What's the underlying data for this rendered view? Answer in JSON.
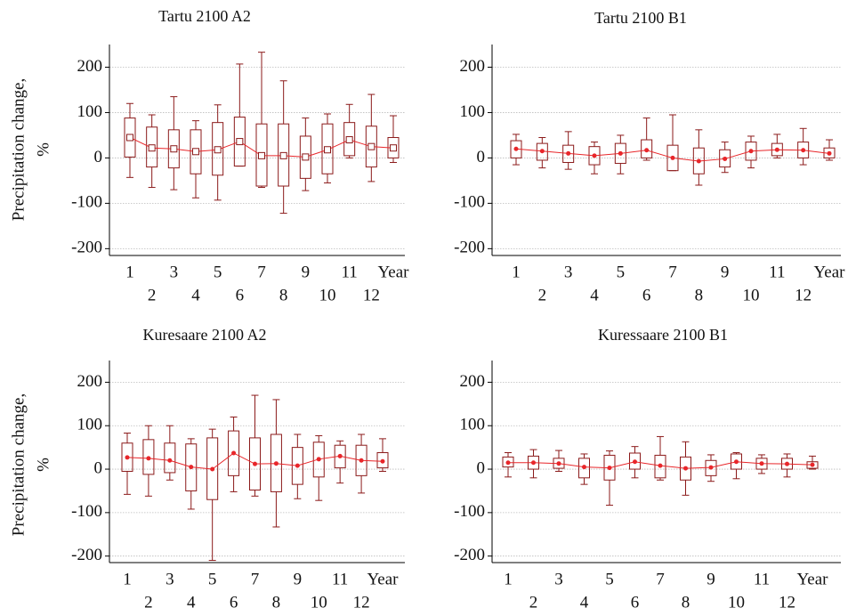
{
  "chart_data": [
    {
      "type": "box",
      "title": "Tartu 2100 A2",
      "ylabel": [
        "Precipitation change,",
        "%"
      ],
      "categories": [
        "1",
        "2",
        "3",
        "4",
        "5",
        "6",
        "7",
        "8",
        "9",
        "10",
        "11",
        "12",
        "Year"
      ],
      "box_color": "#8b1a1a",
      "center_color": "#e8262a",
      "center_marker": "hollow-square",
      "grid": true,
      "ylim": [
        -215,
        250
      ],
      "yticks": [
        -200,
        -100,
        0,
        100,
        200
      ],
      "boxes": [
        {
          "low": -43,
          "q1": 2,
          "mid": 45,
          "q3": 88,
          "high": 120
        },
        {
          "low": -65,
          "q1": -20,
          "mid": 22,
          "q3": 68,
          "high": 95
        },
        {
          "low": -70,
          "q1": -22,
          "mid": 20,
          "q3": 62,
          "high": 135
        },
        {
          "low": -88,
          "q1": -35,
          "mid": 14,
          "q3": 62,
          "high": 82
        },
        {
          "low": -93,
          "q1": -38,
          "mid": 18,
          "q3": 78,
          "high": 117
        },
        {
          "low": -18,
          "q1": -18,
          "mid": 36,
          "q3": 90,
          "high": 207
        },
        {
          "low": -65,
          "q1": -62,
          "mid": 5,
          "q3": 75,
          "high": 233
        },
        {
          "low": -122,
          "q1": -62,
          "mid": 5,
          "q3": 75,
          "high": 170
        },
        {
          "low": -72,
          "q1": -45,
          "mid": 2,
          "q3": 48,
          "high": 88
        },
        {
          "low": -55,
          "q1": -35,
          "mid": 18,
          "q3": 75,
          "high": 97
        },
        {
          "low": 0,
          "q1": 5,
          "mid": 40,
          "q3": 78,
          "high": 118
        },
        {
          "low": -52,
          "q1": -20,
          "mid": 25,
          "q3": 70,
          "high": 140
        },
        {
          "low": -10,
          "q1": 0,
          "mid": 22,
          "q3": 45,
          "high": 93
        }
      ]
    },
    {
      "type": "box",
      "title": "Tartu 2100 B1",
      "categories": [
        "1",
        "2",
        "3",
        "4",
        "5",
        "6",
        "7",
        "8",
        "9",
        "10",
        "11",
        "12",
        "Year"
      ],
      "box_color": "#8b1a1a",
      "center_color": "#e8262a",
      "center_marker": "dot",
      "grid": true,
      "ylim": [
        -215,
        250
      ],
      "yticks": [
        -200,
        -100,
        0,
        100,
        200
      ],
      "boxes": [
        {
          "low": -15,
          "q1": 0,
          "mid": 20,
          "q3": 38,
          "high": 52
        },
        {
          "low": -22,
          "q1": -5,
          "mid": 15,
          "q3": 32,
          "high": 45
        },
        {
          "low": -25,
          "q1": -10,
          "mid": 10,
          "q3": 28,
          "high": 58
        },
        {
          "low": -35,
          "q1": -15,
          "mid": 5,
          "q3": 25,
          "high": 35
        },
        {
          "low": -35,
          "q1": -12,
          "mid": 10,
          "q3": 32,
          "high": 50
        },
        {
          "low": -5,
          "q1": 0,
          "mid": 17,
          "q3": 40,
          "high": 88
        },
        {
          "low": -28,
          "q1": -28,
          "mid": 0,
          "q3": 28,
          "high": 95
        },
        {
          "low": -60,
          "q1": -35,
          "mid": -7,
          "q3": 22,
          "high": 62
        },
        {
          "low": -32,
          "q1": -20,
          "mid": -2,
          "q3": 18,
          "high": 35
        },
        {
          "low": -22,
          "q1": -5,
          "mid": 15,
          "q3": 35,
          "high": 48
        },
        {
          "low": 0,
          "q1": 5,
          "mid": 18,
          "q3": 32,
          "high": 52
        },
        {
          "low": -15,
          "q1": 0,
          "mid": 17,
          "q3": 35,
          "high": 65
        },
        {
          "low": -5,
          "q1": 0,
          "mid": 10,
          "q3": 22,
          "high": 40
        }
      ]
    },
    {
      "type": "box",
      "title": "Kuresaare 2100 A2",
      "ylabel": [
        "Precipitation change,",
        "%"
      ],
      "categories": [
        "1",
        "2",
        "3",
        "4",
        "5",
        "6",
        "7",
        "8",
        "9",
        "10",
        "11",
        "12",
        "Year"
      ],
      "box_color": "#8b1a1a",
      "center_color": "#e8262a",
      "center_marker": "dot",
      "grid": true,
      "ylim": [
        -215,
        250
      ],
      "yticks": [
        -200,
        -100,
        0,
        100,
        200
      ],
      "boxes": [
        {
          "low": -58,
          "q1": -5,
          "mid": 27,
          "q3": 60,
          "high": 83
        },
        {
          "low": -62,
          "q1": -12,
          "mid": 25,
          "q3": 68,
          "high": 100
        },
        {
          "low": -25,
          "q1": -8,
          "mid": 20,
          "q3": 60,
          "high": 100
        },
        {
          "low": -92,
          "q1": -50,
          "mid": 5,
          "q3": 58,
          "high": 70
        },
        {
          "low": -210,
          "q1": -70,
          "mid": 0,
          "q3": 72,
          "high": 92
        },
        {
          "low": -52,
          "q1": -15,
          "mid": 37,
          "q3": 88,
          "high": 120
        },
        {
          "low": -62,
          "q1": -48,
          "mid": 12,
          "q3": 72,
          "high": 170
        },
        {
          "low": -133,
          "q1": -52,
          "mid": 13,
          "q3": 80,
          "high": 160
        },
        {
          "low": -68,
          "q1": -35,
          "mid": 8,
          "q3": 50,
          "high": 80
        },
        {
          "low": -72,
          "q1": -18,
          "mid": 23,
          "q3": 62,
          "high": 77
        },
        {
          "low": -32,
          "q1": 3,
          "mid": 30,
          "q3": 55,
          "high": 65
        },
        {
          "low": -55,
          "q1": -15,
          "mid": 20,
          "q3": 55,
          "high": 80
        },
        {
          "low": -5,
          "q1": 3,
          "mid": 18,
          "q3": 38,
          "high": 70
        }
      ]
    },
    {
      "type": "box",
      "title": "Kuressaare 2100 B1",
      "categories": [
        "1",
        "2",
        "3",
        "4",
        "5",
        "6",
        "7",
        "8",
        "9",
        "10",
        "11",
        "12",
        "Year"
      ],
      "box_color": "#8b1a1a",
      "center_color": "#e8262a",
      "center_marker": "dot",
      "grid": true,
      "ylim": [
        -215,
        250
      ],
      "yticks": [
        -200,
        -100,
        0,
        100,
        200
      ],
      "boxes": [
        {
          "low": -18,
          "q1": 5,
          "mid": 15,
          "q3": 28,
          "high": 38
        },
        {
          "low": -20,
          "q1": 0,
          "mid": 15,
          "q3": 30,
          "high": 45
        },
        {
          "low": -5,
          "q1": 2,
          "mid": 13,
          "q3": 25,
          "high": 43
        },
        {
          "low": -35,
          "q1": -20,
          "mid": 5,
          "q3": 25,
          "high": 35
        },
        {
          "low": -83,
          "q1": -25,
          "mid": 3,
          "q3": 32,
          "high": 42
        },
        {
          "low": -20,
          "q1": 0,
          "mid": 17,
          "q3": 37,
          "high": 52
        },
        {
          "low": -25,
          "q1": -20,
          "mid": 8,
          "q3": 32,
          "high": 75
        },
        {
          "low": -60,
          "q1": -25,
          "mid": 2,
          "q3": 28,
          "high": 63
        },
        {
          "low": -28,
          "q1": -15,
          "mid": 4,
          "q3": 20,
          "high": 33
        },
        {
          "low": -22,
          "q1": 0,
          "mid": 17,
          "q3": 35,
          "high": 38
        },
        {
          "low": -10,
          "q1": 0,
          "mid": 13,
          "q3": 25,
          "high": 33
        },
        {
          "low": -18,
          "q1": 0,
          "mid": 12,
          "q3": 25,
          "high": 35
        },
        {
          "low": 0,
          "q1": 2,
          "mid": 10,
          "q3": 17,
          "high": 30
        }
      ]
    }
  ]
}
